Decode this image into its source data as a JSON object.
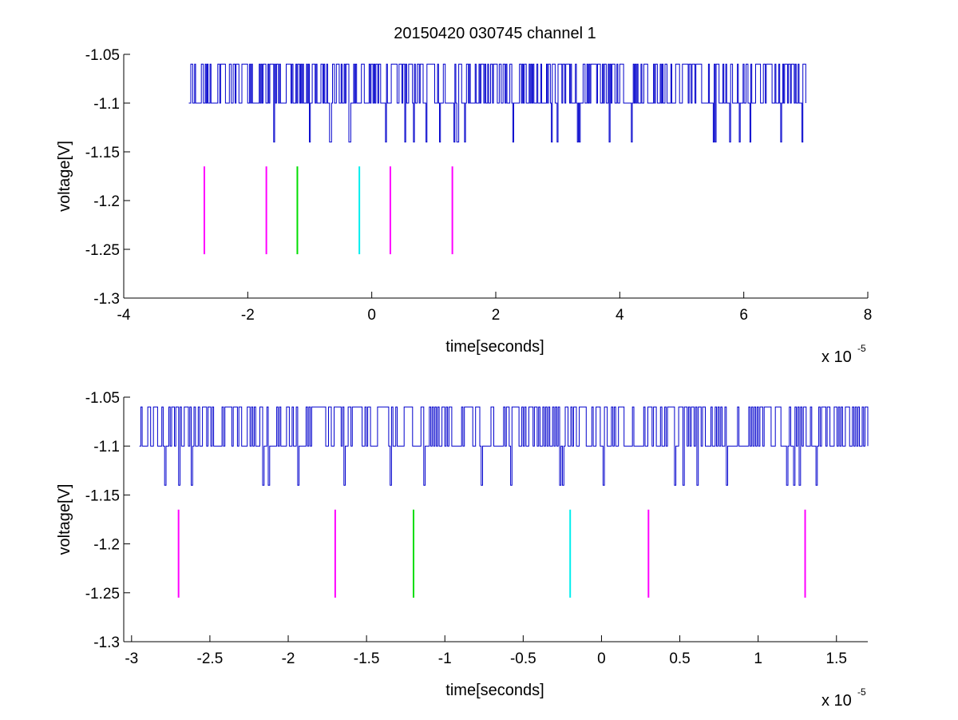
{
  "figure": {
    "title": "20150420 030745 channel 1"
  },
  "colors": {
    "signal": "#0000cc",
    "magenta": "#ff00ff",
    "green": "#00dd00",
    "cyan": "#00eeee"
  },
  "chart_data": [
    {
      "type": "line",
      "xlabel": "time[seconds]",
      "ylabel": "voltage[V]",
      "x_multiplier": "x 10",
      "x_exponent": "-5",
      "xlim": [
        -4,
        8
      ],
      "ylim": [
        -1.3,
        -1.05
      ],
      "xticks": [
        -4,
        -2,
        0,
        2,
        4,
        6,
        8
      ],
      "xtick_labels": [
        "-4",
        "-2",
        "0",
        "2",
        "4",
        "6",
        "8"
      ],
      "yticks": [
        -1.05,
        -1.1,
        -1.15,
        -1.2,
        -1.25,
        -1.3
      ],
      "ytick_labels": [
        "-1.05",
        "-1.1",
        "-1.15",
        "-1.2",
        "-1.25",
        "-1.3"
      ],
      "signal_range": [
        -2.95,
        7.0
      ],
      "signal_levels": [
        -1.06,
        -1.1,
        -1.14
      ],
      "markers": [
        {
          "x": -2.7,
          "color": "magenta",
          "y": [
            -1.255,
            -1.165
          ]
        },
        {
          "x": -1.7,
          "color": "magenta",
          "y": [
            -1.255,
            -1.165
          ]
        },
        {
          "x": -1.2,
          "color": "green",
          "y": [
            -1.255,
            -1.165
          ]
        },
        {
          "x": -0.2,
          "color": "cyan",
          "y": [
            -1.255,
            -1.165
          ]
        },
        {
          "x": 0.3,
          "color": "magenta",
          "y": [
            -1.255,
            -1.165
          ]
        },
        {
          "x": 1.3,
          "color": "magenta",
          "y": [
            -1.255,
            -1.165
          ]
        }
      ]
    },
    {
      "type": "line",
      "xlabel": "time[seconds]",
      "ylabel": "voltage[V]",
      "x_multiplier": "x 10",
      "x_exponent": "-5",
      "xlim": [
        -3.05,
        1.7
      ],
      "ylim": [
        -1.3,
        -1.05
      ],
      "xticks": [
        -3,
        -2.5,
        -2,
        -1.5,
        -1,
        -0.5,
        0,
        0.5,
        1,
        1.5
      ],
      "xtick_labels": [
        "-3",
        "-2.5",
        "-2",
        "-1.5",
        "-1",
        "-0.5",
        "0",
        "0.5",
        "1",
        "1.5"
      ],
      "yticks": [
        -1.05,
        -1.1,
        -1.15,
        -1.2,
        -1.25,
        -1.3
      ],
      "ytick_labels": [
        "-1.05",
        "-1.1",
        "-1.15",
        "-1.2",
        "-1.25",
        "-1.3"
      ],
      "signal_range": [
        -2.95,
        1.7
      ],
      "signal_levels": [
        -1.06,
        -1.1,
        -1.14
      ],
      "markers": [
        {
          "x": -2.7,
          "color": "magenta",
          "y": [
            -1.255,
            -1.165
          ]
        },
        {
          "x": -1.7,
          "color": "magenta",
          "y": [
            -1.255,
            -1.165
          ]
        },
        {
          "x": -1.2,
          "color": "green",
          "y": [
            -1.255,
            -1.165
          ]
        },
        {
          "x": -0.2,
          "color": "cyan",
          "y": [
            -1.255,
            -1.165
          ]
        },
        {
          "x": 0.3,
          "color": "magenta",
          "y": [
            -1.255,
            -1.165
          ]
        },
        {
          "x": 1.3,
          "color": "magenta",
          "y": [
            -1.255,
            -1.165
          ]
        }
      ]
    }
  ]
}
